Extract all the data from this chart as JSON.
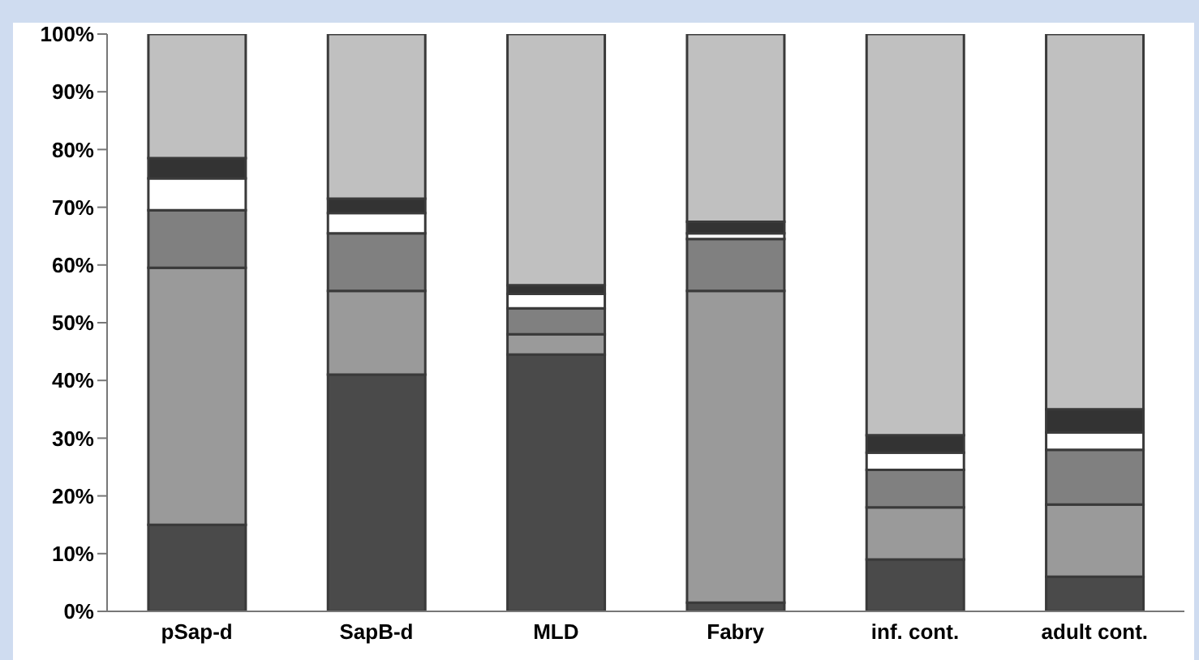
{
  "chart_data": {
    "type": "bar",
    "stacked": true,
    "categories": [
      "pSap-d",
      "SapB-d",
      "MLD",
      "Fabry",
      "inf. cont.",
      "adult cont."
    ],
    "series": [
      {
        "color": "#4a4a4a",
        "values": [
          15,
          41,
          44.5,
          1.5,
          9,
          6
        ]
      },
      {
        "color": "#9a9a9a",
        "values": [
          44.5,
          14.5,
          3.5,
          54,
          9,
          12.5
        ]
      },
      {
        "color": "#808080",
        "values": [
          10,
          10,
          4.5,
          9,
          6.5,
          9.5
        ]
      },
      {
        "color": "#ffffff",
        "values": [
          5.5,
          3.5,
          2.5,
          1,
          3,
          3
        ]
      },
      {
        "color": "#333333",
        "values": [
          3.5,
          2.5,
          1.5,
          2,
          3,
          4
        ]
      },
      {
        "color": "#c0c0c0",
        "values": [
          21.5,
          28.5,
          43.5,
          32.5,
          69.5,
          65
        ]
      }
    ],
    "ylim": [
      0,
      100
    ],
    "yticks": [
      {
        "value": 0,
        "label": "0%"
      },
      {
        "value": 10,
        "label": "10%"
      },
      {
        "value": 20,
        "label": "20%"
      },
      {
        "value": 30,
        "label": "30%"
      },
      {
        "value": 40,
        "label": "40%"
      },
      {
        "value": 50,
        "label": "50%"
      },
      {
        "value": 60,
        "label": "60%"
      },
      {
        "value": 70,
        "label": "70%"
      },
      {
        "value": 80,
        "label": "80%"
      },
      {
        "value": 90,
        "label": "90%"
      },
      {
        "value": 100,
        "label": "100%"
      }
    ],
    "grid": false,
    "legend": false
  }
}
